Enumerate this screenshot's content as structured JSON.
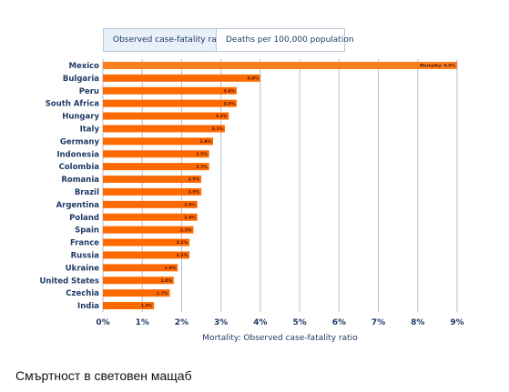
{
  "tabs": [
    {
      "label": "Observed case-fatality ratio",
      "active": true
    },
    {
      "label": "Deaths per 100,000 population",
      "active": false
    }
  ],
  "chart_data": {
    "type": "bar",
    "orientation": "horizontal",
    "categories": [
      "Mexico",
      "Bulgaria",
      "Peru",
      "South Africa",
      "Hungary",
      "Italy",
      "Germany",
      "Indonesia",
      "Colombia",
      "Romania",
      "Brazil",
      "Argentina",
      "Poland",
      "Spain",
      "France",
      "Russia",
      "Ukraine",
      "United States",
      "Czechia",
      "India"
    ],
    "values": [
      9.0,
      4.0,
      3.4,
      3.4,
      3.2,
      3.1,
      2.8,
      2.7,
      2.7,
      2.5,
      2.5,
      2.4,
      2.4,
      2.3,
      2.2,
      2.2,
      1.9,
      1.8,
      1.7,
      1.3
    ],
    "data_labels": [
      "Mortality: 9.0%",
      "4.0%",
      "3.4%",
      "3.4%",
      "3.2%",
      "3.1%",
      "2.8%",
      "2.7%",
      "2.7%",
      "2.5%",
      "2.5%",
      "2.4%",
      "2.4%",
      "2.3%",
      "2.2%",
      "2.2%",
      "1.9%",
      "1.8%",
      "1.7%",
      "1.3%"
    ],
    "xticks": [
      "0%",
      "1%",
      "2%",
      "3%",
      "4%",
      "5%",
      "6%",
      "7%",
      "8%",
      "9%"
    ],
    "xlim": [
      0,
      9
    ],
    "xlabel": "Mortality: Observed case-fatality ratio",
    "grid": true,
    "bar_color": "#ff6a00",
    "highlight_color": "#ff7f1f",
    "grid_color": "#b5bdd6"
  },
  "footer": {
    "caption": "Смъртност в световен мащаб"
  }
}
